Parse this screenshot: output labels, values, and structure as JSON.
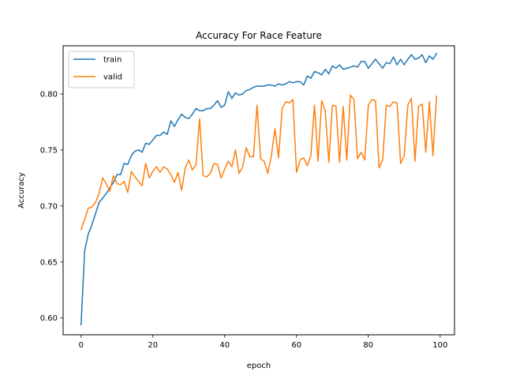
{
  "chart_data": {
    "type": "line",
    "title": "Accuracy For Race Feature",
    "xlabel": "epoch",
    "ylabel": "Accuracy",
    "xlim": [
      -5,
      104
    ],
    "ylim": [
      0.585,
      0.843
    ],
    "xticks": [
      0,
      20,
      40,
      60,
      80,
      100
    ],
    "xtick_labels": [
      "0",
      "20",
      "40",
      "60",
      "80",
      "100"
    ],
    "yticks": [
      0.6,
      0.65,
      0.7,
      0.75,
      0.8
    ],
    "ytick_labels": [
      "0.60",
      "0.65",
      "0.70",
      "0.75",
      "0.80"
    ],
    "grid": false,
    "legend_position": "upper-left",
    "x": [
      0,
      1,
      2,
      3,
      4,
      5,
      6,
      7,
      8,
      9,
      10,
      11,
      12,
      13,
      14,
      15,
      16,
      17,
      18,
      19,
      20,
      21,
      22,
      23,
      24,
      25,
      26,
      27,
      28,
      29,
      30,
      31,
      32,
      33,
      34,
      35,
      36,
      37,
      38,
      39,
      40,
      41,
      42,
      43,
      44,
      45,
      46,
      47,
      48,
      49,
      50,
      51,
      52,
      53,
      54,
      55,
      56,
      57,
      58,
      59,
      60,
      61,
      62,
      63,
      64,
      65,
      66,
      67,
      68,
      69,
      70,
      71,
      72,
      73,
      74,
      75,
      76,
      77,
      78,
      79,
      80,
      81,
      82,
      83,
      84,
      85,
      86,
      87,
      88,
      89,
      90,
      91,
      92,
      93,
      94,
      95,
      96,
      97,
      98,
      99
    ],
    "series": [
      {
        "name": "train",
        "color": "#1f77b4",
        "values": [
          0.594,
          0.66,
          0.675,
          0.683,
          0.693,
          0.703,
          0.707,
          0.711,
          0.716,
          0.721,
          0.728,
          0.728,
          0.738,
          0.737,
          0.745,
          0.749,
          0.75,
          0.748,
          0.756,
          0.755,
          0.759,
          0.763,
          0.763,
          0.766,
          0.764,
          0.776,
          0.771,
          0.777,
          0.782,
          0.779,
          0.778,
          0.782,
          0.787,
          0.785,
          0.785,
          0.787,
          0.787,
          0.79,
          0.794,
          0.788,
          0.79,
          0.802,
          0.796,
          0.801,
          0.799,
          0.8,
          0.803,
          0.804,
          0.806,
          0.807,
          0.807,
          0.807,
          0.808,
          0.808,
          0.807,
          0.809,
          0.808,
          0.809,
          0.811,
          0.81,
          0.811,
          0.811,
          0.808,
          0.816,
          0.814,
          0.82,
          0.819,
          0.817,
          0.822,
          0.818,
          0.825,
          0.823,
          0.826,
          0.822,
          0.823,
          0.824,
          0.825,
          0.824,
          0.829,
          0.829,
          0.823,
          0.827,
          0.831,
          0.827,
          0.823,
          0.828,
          0.827,
          0.833,
          0.826,
          0.831,
          0.826,
          0.831,
          0.835,
          0.831,
          0.832,
          0.835,
          0.828,
          0.834,
          0.831,
          0.836
        ]
      },
      {
        "name": "valid",
        "color": "#ff7f0e",
        "values": [
          0.679,
          0.688,
          0.698,
          0.699,
          0.703,
          0.711,
          0.725,
          0.72,
          0.713,
          0.727,
          0.72,
          0.719,
          0.722,
          0.712,
          0.731,
          0.726,
          0.722,
          0.718,
          0.738,
          0.725,
          0.731,
          0.735,
          0.73,
          0.735,
          0.733,
          0.728,
          0.721,
          0.73,
          0.714,
          0.734,
          0.741,
          0.732,
          0.737,
          0.778,
          0.727,
          0.726,
          0.729,
          0.738,
          0.737,
          0.725,
          0.733,
          0.74,
          0.735,
          0.75,
          0.729,
          0.735,
          0.752,
          0.744,
          0.744,
          0.79,
          0.742,
          0.74,
          0.729,
          0.745,
          0.769,
          0.743,
          0.787,
          0.793,
          0.792,
          0.795,
          0.73,
          0.741,
          0.743,
          0.736,
          0.745,
          0.79,
          0.74,
          0.794,
          0.785,
          0.739,
          0.79,
          0.789,
          0.739,
          0.789,
          0.741,
          0.799,
          0.795,
          0.742,
          0.748,
          0.741,
          0.79,
          0.795,
          0.794,
          0.734,
          0.741,
          0.79,
          0.789,
          0.793,
          0.792,
          0.738,
          0.745,
          0.79,
          0.796,
          0.74,
          0.789,
          0.791,
          0.748,
          0.793,
          0.745,
          0.798
        ]
      }
    ]
  }
}
